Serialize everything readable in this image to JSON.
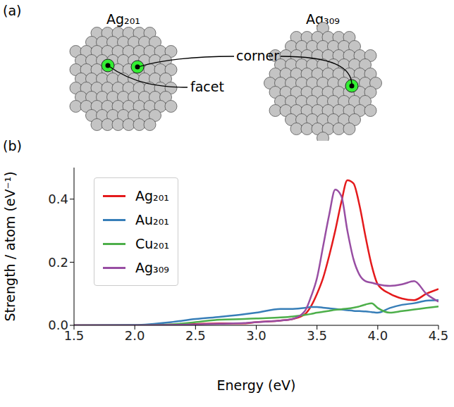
{
  "panel_a": {
    "letter": "(a)",
    "clusters": [
      {
        "name": "Ag₂₀₁"
      },
      {
        "name": "Ag₃₀₉"
      }
    ],
    "annotations": [
      "corner",
      "facet"
    ]
  },
  "panel_b": {
    "letter": "(b)"
  },
  "chart_data": {
    "type": "line",
    "x_label": "Energy (eV)",
    "y_label": "Strength / atom (eV⁻¹)",
    "x": [
      1.5,
      2.0,
      2.3,
      2.5,
      2.7,
      2.9,
      3.0,
      3.2,
      3.3,
      3.4,
      3.45,
      3.5,
      3.55,
      3.6,
      3.65,
      3.7,
      3.75,
      3.8,
      3.85,
      3.9,
      3.95,
      4.0,
      4.1,
      4.2,
      4.3,
      4.4,
      4.5
    ],
    "series": [
      {
        "name": "Ag₂₀₁",
        "color": "#e41a1c",
        "values": [
          0,
          0,
          0.002,
          0.004,
          0.006,
          0.006,
          0.01,
          0.015,
          0.02,
          0.035,
          0.06,
          0.1,
          0.15,
          0.22,
          0.3,
          0.39,
          0.46,
          0.45,
          0.38,
          0.28,
          0.19,
          0.13,
          0.1,
          0.085,
          0.08,
          0.1,
          0.115
        ]
      },
      {
        "name": "Au₂₀₁",
        "color": "#377eb8",
        "values": [
          0,
          0.001,
          0.01,
          0.02,
          0.027,
          0.035,
          0.04,
          0.052,
          0.052,
          0.055,
          0.058,
          0.058,
          0.056,
          0.054,
          0.052,
          0.05,
          0.048,
          0.046,
          0.045,
          0.044,
          0.042,
          0.04,
          0.055,
          0.065,
          0.07,
          0.078,
          0.08
        ]
      },
      {
        "name": "Cu₂₀₁",
        "color": "#4daf4a",
        "values": [
          0,
          0,
          0.003,
          0.01,
          0.018,
          0.02,
          0.022,
          0.025,
          0.028,
          0.033,
          0.036,
          0.04,
          0.043,
          0.046,
          0.049,
          0.051,
          0.053,
          0.056,
          0.06,
          0.066,
          0.07,
          0.055,
          0.04,
          0.045,
          0.05,
          0.055,
          0.06
        ]
      },
      {
        "name": "Ag₃₀₉",
        "color": "#984ea3",
        "values": [
          0,
          0,
          0.001,
          0.003,
          0.005,
          0.007,
          0.01,
          0.015,
          0.02,
          0.045,
          0.09,
          0.15,
          0.25,
          0.35,
          0.43,
          0.41,
          0.3,
          0.21,
          0.16,
          0.14,
          0.135,
          0.13,
          0.125,
          0.13,
          0.14,
          0.1,
          0.075
        ]
      }
    ],
    "xlim": [
      1.5,
      4.5
    ],
    "xticks": [
      1.5,
      {
        "value": 2,
        "label": "2.0"
      },
      2.5,
      {
        "value": 3,
        "label": "3.0"
      },
      3.5,
      {
        "value": 4,
        "label": "4.0"
      },
      4.5
    ],
    "ylim": [
      0,
      0.5
    ],
    "yticks": [
      {
        "value": 0,
        "label": "0.0"
      },
      0.2,
      0.4
    ],
    "legend": "top-left",
    "grid": false
  }
}
